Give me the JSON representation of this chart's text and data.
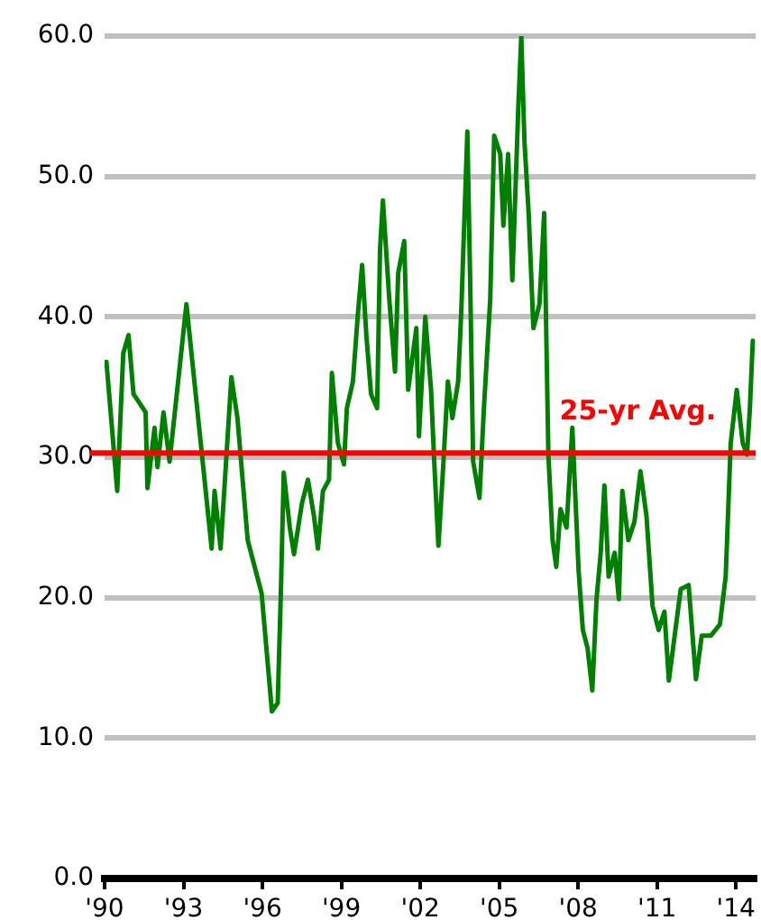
{
  "chart_data": {
    "type": "line",
    "x": [
      1990.07,
      1990.48,
      1990.71,
      1990.91,
      1991.1,
      1991.56,
      1991.63,
      1991.9,
      1992.01,
      1992.24,
      1992.47,
      1993.11,
      1994.07,
      1994.18,
      1994.41,
      1994.82,
      1995.05,
      1995.44,
      1995.97,
      1996.36,
      1996.58,
      1996.7,
      1996.81,
      1997.04,
      1997.2,
      1997.5,
      1997.73,
      1997.96,
      1998.11,
      1998.3,
      1998.53,
      1998.64,
      1998.87,
      1999.1,
      1999.21,
      1999.44,
      1999.62,
      1999.79,
      1999.95,
      2000.13,
      2000.36,
      2000.47,
      2000.58,
      2000.82,
      2001.04,
      2001.16,
      2001.39,
      2001.54,
      2001.85,
      2001.95,
      2002.19,
      2002.41,
      2002.53,
      2002.69,
      2002.87,
      2003.05,
      2003.22,
      2003.44,
      2003.56,
      2003.79,
      2003.9,
      2004.01,
      2004.25,
      2004.42,
      2004.66,
      2004.81,
      2005.04,
      2005.16,
      2005.34,
      2005.5,
      2005.73,
      2005.84,
      2005.96,
      2006.12,
      2006.3,
      2006.53,
      2006.71,
      2006.87,
      2007.03,
      2007.17,
      2007.33,
      2007.56,
      2007.78,
      2008.02,
      2008.18,
      2008.36,
      2008.54,
      2008.7,
      2008.86,
      2009.0,
      2009.16,
      2009.39,
      2009.55,
      2009.68,
      2009.91,
      2010.14,
      2010.37,
      2010.6,
      2010.83,
      2011.06,
      2011.28,
      2011.45,
      2011.67,
      2011.9,
      2012.2,
      2012.48,
      2012.7,
      2013.05,
      2013.39,
      2013.61,
      2013.8,
      2014.03,
      2014.26,
      2014.42,
      2014.53,
      2014.64
    ],
    "series": [
      {
        "color": "#008000",
        "values": [
          36.8,
          27.6,
          37.4,
          38.7,
          34.5,
          33.2,
          27.8,
          32.1,
          29.3,
          33.2,
          29.7,
          40.9,
          23.5,
          27.6,
          23.5,
          35.7,
          32.8,
          24.1,
          20.3,
          11.9,
          12.5,
          20.3,
          28.9,
          25.0,
          23.1,
          26.7,
          28.4,
          25.8,
          23.5,
          27.6,
          28.4,
          36.0,
          31.0,
          29.5,
          33.5,
          35.4,
          40.0,
          43.7,
          38.7,
          34.5,
          33.5,
          44.8,
          48.3,
          41.3,
          36.1,
          43.1,
          45.4,
          34.8,
          39.2,
          31.5,
          40.0,
          34.8,
          29.7,
          23.7,
          29.3,
          35.4,
          32.8,
          35.4,
          40.5,
          53.2,
          42.2,
          29.7,
          27.1,
          33.5,
          41.3,
          52.9,
          51.6,
          46.5,
          51.6,
          42.6,
          55.1,
          60.0,
          52.5,
          47.4,
          39.2,
          40.9,
          47.4,
          30.2,
          24.1,
          22.2,
          26.3,
          25.0,
          32.1,
          21.9,
          17.7,
          16.4,
          13.4,
          19.9,
          23.2,
          28.0,
          21.5,
          23.2,
          19.9,
          27.6,
          24.1,
          25.4,
          29.0,
          25.8,
          19.4,
          17.7,
          19.0,
          14.1,
          17.3,
          20.6,
          20.9,
          14.2,
          17.3,
          17.3,
          18.1,
          21.5,
          31.0,
          34.8,
          31.0,
          30.2,
          33.5,
          38.3
        ]
      }
    ],
    "xlim": [
      1990,
      2014.75
    ],
    "xticks": [
      {
        "value": 1990,
        "label": "'90"
      },
      {
        "value": 1993,
        "label": "'93"
      },
      {
        "value": 1996,
        "label": "'96"
      },
      {
        "value": 1999,
        "label": "'99"
      },
      {
        "value": 2002,
        "label": "'02"
      },
      {
        "value": 2005,
        "label": "'05"
      },
      {
        "value": 2008,
        "label": "'08"
      },
      {
        "value": 2011,
        "label": "'11"
      },
      {
        "value": 2014,
        "label": "'14"
      }
    ],
    "ylim": [
      0,
      60
    ],
    "yticks": [
      {
        "value": 0,
        "label": "0.0"
      },
      {
        "value": 10,
        "label": "10.0"
      },
      {
        "value": 20,
        "label": "20.0"
      },
      {
        "value": 30,
        "label": "30.0"
      },
      {
        "value": 40,
        "label": "40.0"
      },
      {
        "value": 50,
        "label": "50.0"
      },
      {
        "value": 60,
        "label": "60.0"
      }
    ],
    "grid": "y",
    "ref_lines": [
      {
        "axis": "y",
        "value": 30.3,
        "label": "25-yr Avg.",
        "color": "#ff0000"
      }
    ]
  }
}
